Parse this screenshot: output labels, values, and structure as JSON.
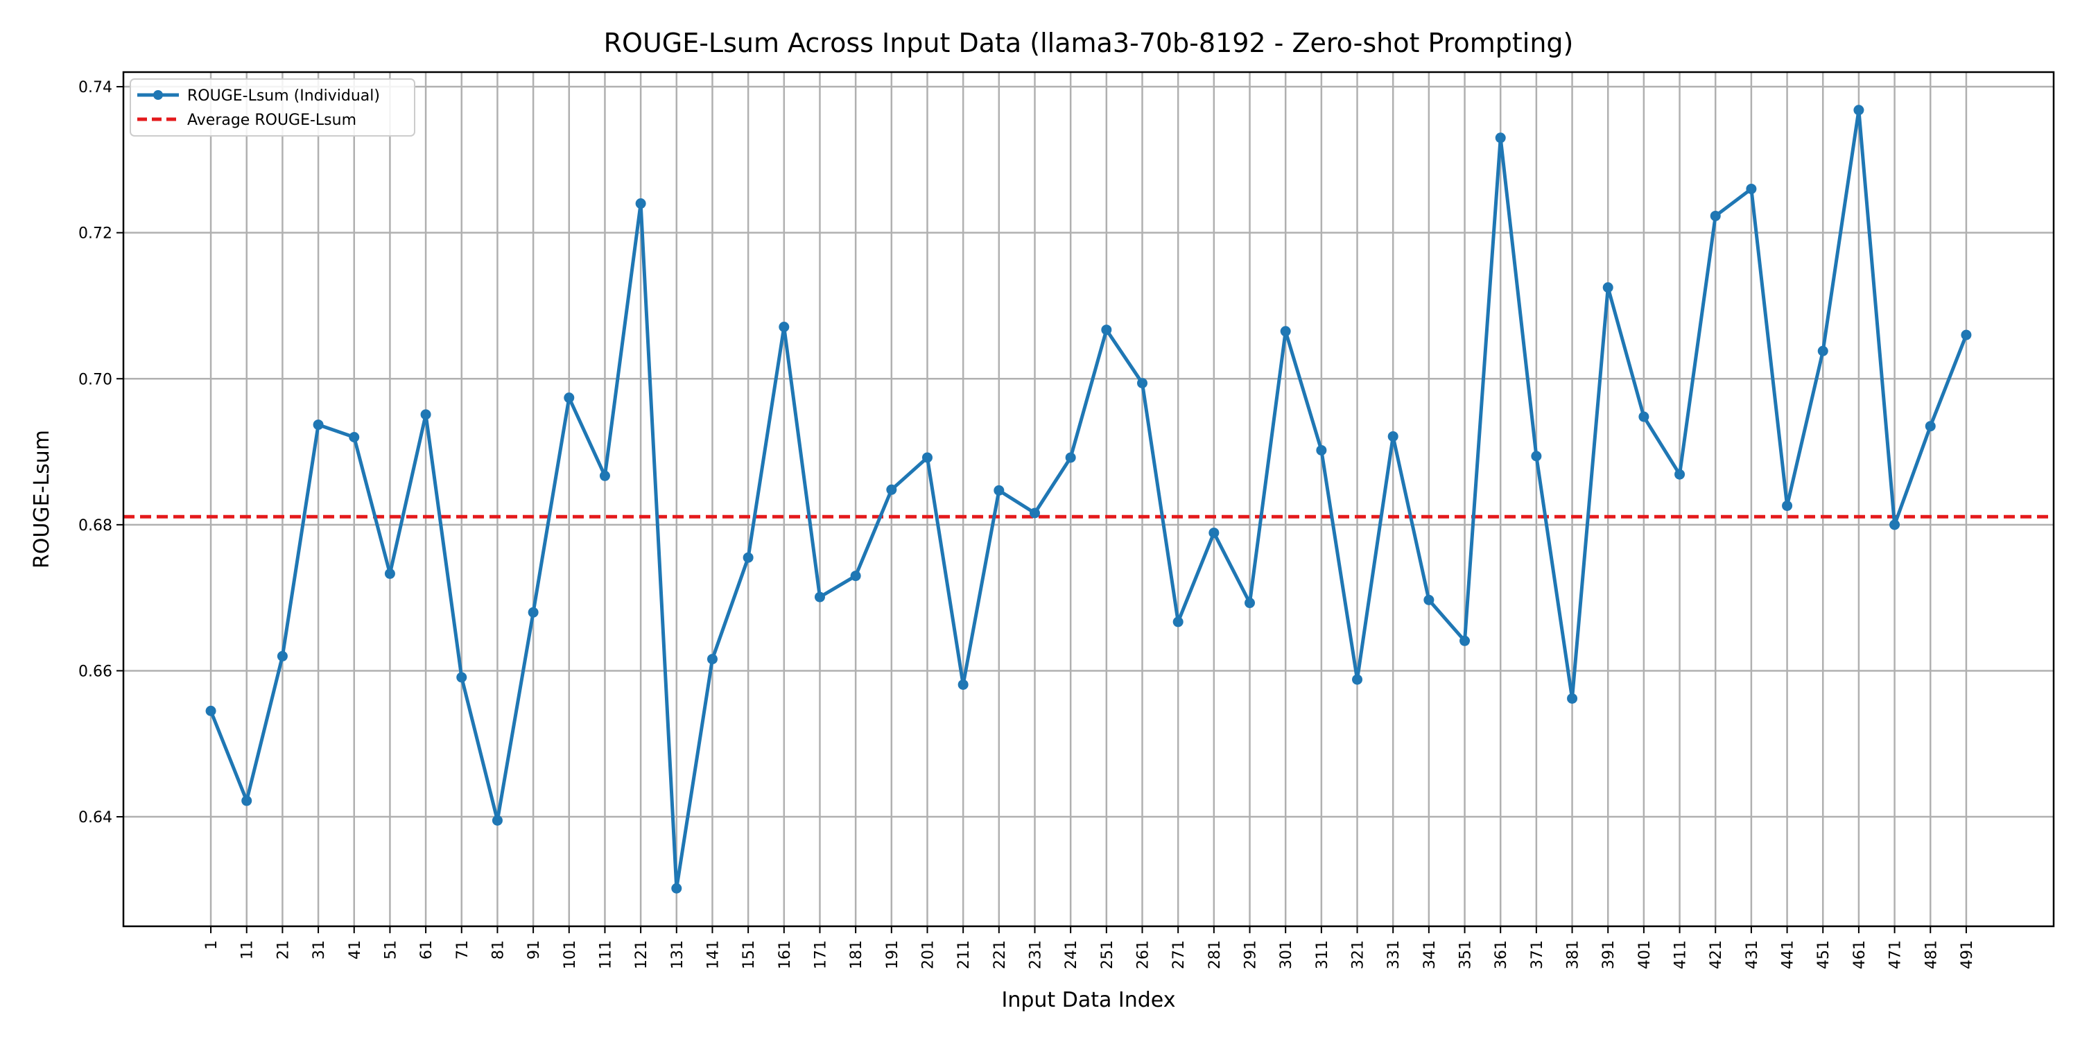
{
  "chart_data": {
    "type": "line",
    "title": "ROUGE-Lsum Across Input Data (llama3-70b-8192 - Zero-shot Prompting)",
    "xlabel": "Input Data Index",
    "ylabel": "ROUGE-Lsum",
    "categories": [
      "1",
      "11",
      "21",
      "31",
      "41",
      "51",
      "61",
      "71",
      "81",
      "91",
      "101",
      "111",
      "121",
      "131",
      "141",
      "151",
      "161",
      "171",
      "181",
      "191",
      "201",
      "211",
      "221",
      "231",
      "241",
      "251",
      "261",
      "271",
      "281",
      "291",
      "301",
      "311",
      "321",
      "331",
      "341",
      "351",
      "361",
      "371",
      "381",
      "391",
      "401",
      "411",
      "421",
      "431",
      "441",
      "451",
      "461",
      "471",
      "481",
      "491"
    ],
    "series": [
      {
        "name": "ROUGE-Lsum (Individual)",
        "color": "#1f77b4",
        "values": [
          0.6545,
          0.6422,
          0.662,
          0.6937,
          0.692,
          0.6733,
          0.6951,
          0.6591,
          0.6395,
          0.668,
          0.6974,
          0.6867,
          0.724,
          0.6302,
          0.6616,
          0.6755,
          0.7071,
          0.6701,
          0.673,
          0.6848,
          0.6892,
          0.6581,
          0.6847,
          0.6816,
          0.6892,
          0.7067,
          0.6994,
          0.6667,
          0.6789,
          0.6693,
          0.7065,
          0.6902,
          0.6588,
          0.6921,
          0.6697,
          0.6641,
          0.733,
          0.6894,
          0.6562,
          0.7125,
          0.6948,
          0.6869,
          0.7223,
          0.726,
          0.6826,
          0.7038,
          0.7368,
          0.68,
          0.6935,
          0.706
        ]
      }
    ],
    "average": {
      "name": "Average ROUGE-Lsum",
      "value": 0.6811,
      "color": "#e41a1c"
    },
    "ylim": [
      0.625,
      0.742
    ],
    "yticks": [
      "0.64",
      "0.66",
      "0.68",
      "0.70",
      "0.72",
      "0.74"
    ],
    "grid": true,
    "legend_position": "top-left"
  }
}
